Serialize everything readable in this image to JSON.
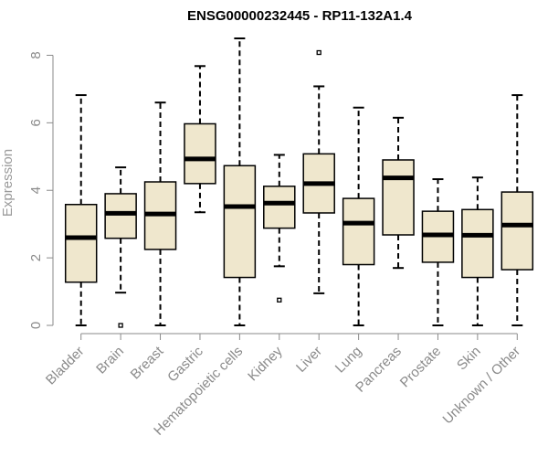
{
  "chart_data": {
    "type": "box",
    "title": "ENSG00000232445 - RP11-132A1.4",
    "xlabel": "",
    "ylabel": "Expression",
    "ylim": [
      0,
      8.5
    ],
    "yticks": [
      0,
      2,
      4,
      6,
      8
    ],
    "categories": [
      "Bladder",
      "Brain",
      "Breast",
      "Gastric",
      "Hematopoietic cells",
      "Kidney",
      "Liver",
      "Lung",
      "Pancreas",
      "Prostate",
      "Skin",
      "Unknown / Other"
    ],
    "boxes": [
      {
        "min": 0.0,
        "q1": 1.28,
        "median": 2.6,
        "q3": 3.58,
        "max": 6.82,
        "outliers": []
      },
      {
        "min": 0.97,
        "q1": 2.58,
        "median": 3.32,
        "q3": 3.9,
        "max": 4.68,
        "outliers": [
          0.0
        ]
      },
      {
        "min": 0.0,
        "q1": 2.25,
        "median": 3.3,
        "q3": 4.25,
        "max": 6.6,
        "outliers": []
      },
      {
        "min": 3.35,
        "q1": 4.2,
        "median": 4.93,
        "q3": 5.97,
        "max": 7.68,
        "outliers": []
      },
      {
        "min": 0.0,
        "q1": 1.42,
        "median": 3.52,
        "q3": 4.73,
        "max": 8.5,
        "outliers": []
      },
      {
        "min": 1.75,
        "q1": 2.88,
        "median": 3.62,
        "q3": 4.12,
        "max": 5.05,
        "outliers": [
          0.75
        ]
      },
      {
        "min": 0.95,
        "q1": 3.33,
        "median": 4.2,
        "q3": 5.08,
        "max": 7.08,
        "outliers": [
          8.08
        ]
      },
      {
        "min": 0.0,
        "q1": 1.8,
        "median": 3.03,
        "q3": 3.76,
        "max": 6.45,
        "outliers": []
      },
      {
        "min": 1.7,
        "q1": 2.68,
        "median": 4.37,
        "q3": 4.9,
        "max": 6.15,
        "outliers": []
      },
      {
        "min": 0.0,
        "q1": 1.87,
        "median": 2.68,
        "q3": 3.38,
        "max": 4.33,
        "outliers": []
      },
      {
        "min": 0.0,
        "q1": 1.42,
        "median": 2.67,
        "q3": 3.43,
        "max": 4.38,
        "outliers": []
      },
      {
        "min": 0.0,
        "q1": 1.65,
        "median": 2.97,
        "q3": 3.95,
        "max": 6.82,
        "outliers": []
      }
    ],
    "box_fill": "#efe7cd",
    "box_stroke": "#000000",
    "axis_color": "#8a8a8a",
    "grid": false,
    "legend": "none"
  }
}
